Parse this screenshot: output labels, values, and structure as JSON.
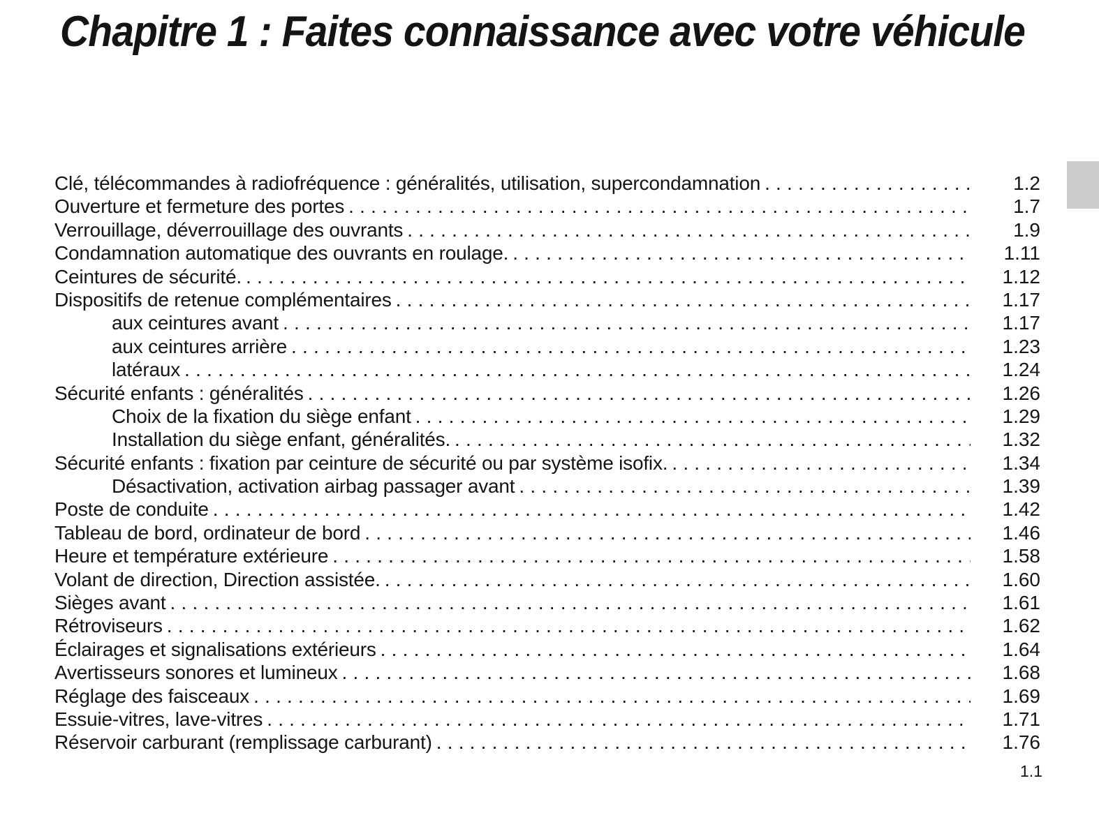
{
  "chapter": {
    "title": "Chapitre 1 : Faites connaissance avec votre véhicule"
  },
  "edge_tab": {
    "color": "#cbcbcb"
  },
  "footer": {
    "page_number": "1.1"
  },
  "toc": {
    "entries": [
      {
        "label": "Clé, télécommandes à radiofréquence : généralités, utilisation, supercondamnation",
        "page": "1.2",
        "indent": false
      },
      {
        "label": "Ouverture et fermeture des portes",
        "page": "1.7",
        "indent": false
      },
      {
        "label": "Verrouillage, déverrouillage des ouvrants",
        "page": "1.9",
        "indent": false
      },
      {
        "label": "Condamnation automatique des ouvrants en roulage.",
        "page": "1.11",
        "indent": false
      },
      {
        "label": "Ceintures de sécurité.",
        "page": "1.12",
        "indent": false
      },
      {
        "label": "Dispositifs de retenue complémentaires",
        "page": "1.17",
        "indent": false
      },
      {
        "label": "aux ceintures avant",
        "page": "1.17",
        "indent": true
      },
      {
        "label": "aux ceintures arrière",
        "page": "1.23",
        "indent": true
      },
      {
        "label": "latéraux",
        "page": "1.24",
        "indent": true
      },
      {
        "label": "Sécurité enfants : généralités",
        "page": "1.26",
        "indent": false
      },
      {
        "label": "Choix de la fixation du siège enfant",
        "page": "1.29",
        "indent": true
      },
      {
        "label": "Installation du siège enfant, généralités.",
        "page": "1.32",
        "indent": true
      },
      {
        "label": "Sécurité enfants : fixation par ceinture de sécurité ou par système isofix.",
        "page": "1.34",
        "indent": false
      },
      {
        "label": "Désactivation, activation airbag passager avant",
        "page": "1.39",
        "indent": true
      },
      {
        "label": "Poste de conduite",
        "page": "1.42",
        "indent": false
      },
      {
        "label": "Tableau de bord, ordinateur de bord",
        "page": "1.46",
        "indent": false
      },
      {
        "label": "Heure et température extérieure",
        "page": "1.58",
        "indent": false
      },
      {
        "label": "Volant de direction, Direction assistée.",
        "page": "1.60",
        "indent": false
      },
      {
        "label": "Sièges avant",
        "page": "1.61",
        "indent": false
      },
      {
        "label": "Rétroviseurs",
        "page": "1.62",
        "indent": false
      },
      {
        "label": "Éclairages et signalisations extérieurs",
        "page": "1.64",
        "indent": false
      },
      {
        "label": "Avertisseurs sonores et lumineux",
        "page": "1.68",
        "indent": false
      },
      {
        "label": "Réglage des faisceaux",
        "page": "1.69",
        "indent": false
      },
      {
        "label": "Essuie-vitres, lave-vitres",
        "page": "1.71",
        "indent": false
      },
      {
        "label": "Réservoir carburant (remplissage carburant)",
        "page": "1.76",
        "indent": false
      }
    ]
  }
}
